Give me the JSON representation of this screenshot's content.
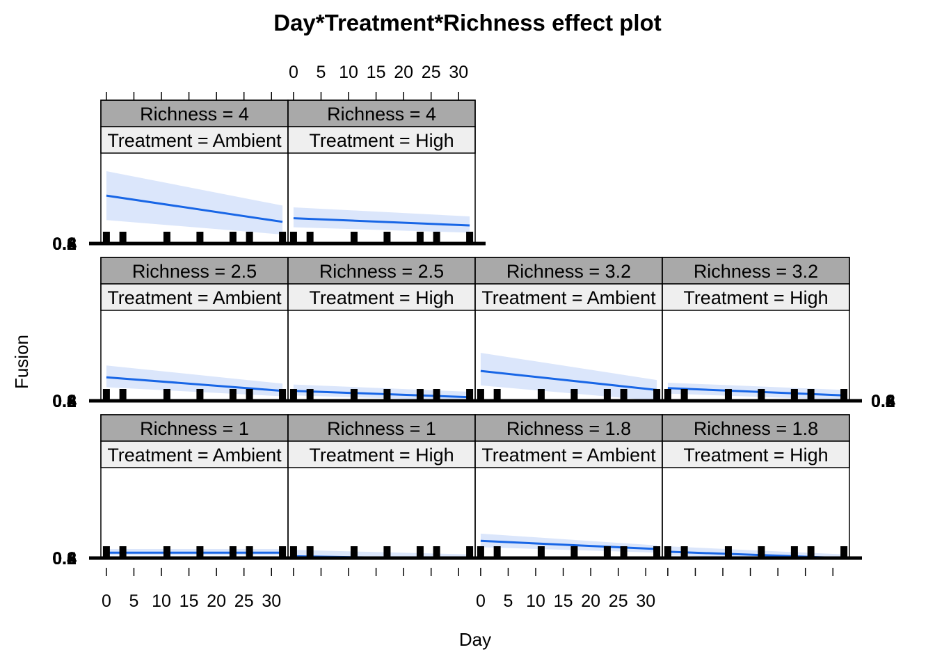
{
  "chart_data": {
    "type": "line",
    "title": "Day*Treatment*Richness effect plot",
    "xlabel": "Day",
    "ylabel": "Fusion",
    "xlim": [
      -1,
      33
    ],
    "ylim": [
      0,
      1
    ],
    "x_ticks": [
      "0",
      "5",
      "10",
      "15",
      "20",
      "25",
      "30"
    ],
    "y_tick_labels": [
      "0.2",
      "0.4",
      "0.6",
      "0.8"
    ],
    "rug_x": [
      0,
      3,
      11,
      17,
      23,
      26,
      32
    ],
    "band_color": "#dbe6fb",
    "line_color": "#1866e6",
    "panels": [
      {
        "richness": "Richness = 1",
        "treatment": "Treatment = Ambient",
        "x": [
          0,
          32
        ],
        "fit": [
          0.06,
          0.06
        ],
        "lower": [
          0.03,
          0.03
        ],
        "upper": [
          0.1,
          0.1
        ]
      },
      {
        "richness": "Richness = 1",
        "treatment": "Treatment = High",
        "x": [
          0,
          32
        ],
        "fit": [
          0.02,
          -0.01
        ],
        "lower": [
          -0.02,
          -0.05
        ],
        "upper": [
          0.09,
          0.04
        ]
      },
      {
        "richness": "Richness = 1.8",
        "treatment": "Treatment = Ambient",
        "x": [
          0,
          32
        ],
        "fit": [
          0.19,
          0.1
        ],
        "lower": [
          0.12,
          0.06
        ],
        "upper": [
          0.27,
          0.14
        ]
      },
      {
        "richness": "Richness = 1.8",
        "treatment": "Treatment = High",
        "x": [
          0,
          32
        ],
        "fit": [
          0.07,
          0.0
        ],
        "lower": [
          0.03,
          -0.03
        ],
        "upper": [
          0.13,
          0.04
        ]
      },
      {
        "richness": "Richness = 2.5",
        "treatment": "Treatment = Ambient",
        "x": [
          0,
          32
        ],
        "fit": [
          0.26,
          0.11
        ],
        "lower": [
          0.15,
          0.05
        ],
        "upper": [
          0.39,
          0.19
        ]
      },
      {
        "richness": "Richness = 2.5",
        "treatment": "Treatment = High",
        "x": [
          0,
          32
        ],
        "fit": [
          0.11,
          0.04
        ],
        "lower": [
          0.06,
          0.0
        ],
        "upper": [
          0.18,
          0.1
        ]
      },
      {
        "richness": "Richness = 3.2",
        "treatment": "Treatment = Ambient",
        "x": [
          0,
          32
        ],
        "fit": [
          0.33,
          0.12
        ],
        "lower": [
          0.17,
          0.0
        ],
        "upper": [
          0.53,
          0.23
        ]
      },
      {
        "richness": "Richness = 3.2",
        "treatment": "Treatment = High",
        "x": [
          0,
          32
        ],
        "fit": [
          0.14,
          0.06
        ],
        "lower": [
          0.08,
          0.01
        ],
        "upper": [
          0.2,
          0.12
        ]
      },
      {
        "richness": "Richness = 4",
        "treatment": "Treatment = Ambient",
        "x": [
          0,
          32
        ],
        "fit": [
          0.53,
          0.24
        ],
        "lower": [
          0.26,
          0.1
        ],
        "upper": [
          0.8,
          0.42
        ]
      },
      {
        "richness": "Richness = 4",
        "treatment": "Treatment = High",
        "x": [
          0,
          32
        ],
        "fit": [
          0.28,
          0.2
        ],
        "lower": [
          0.18,
          0.12
        ],
        "upper": [
          0.4,
          0.3
        ]
      }
    ]
  }
}
